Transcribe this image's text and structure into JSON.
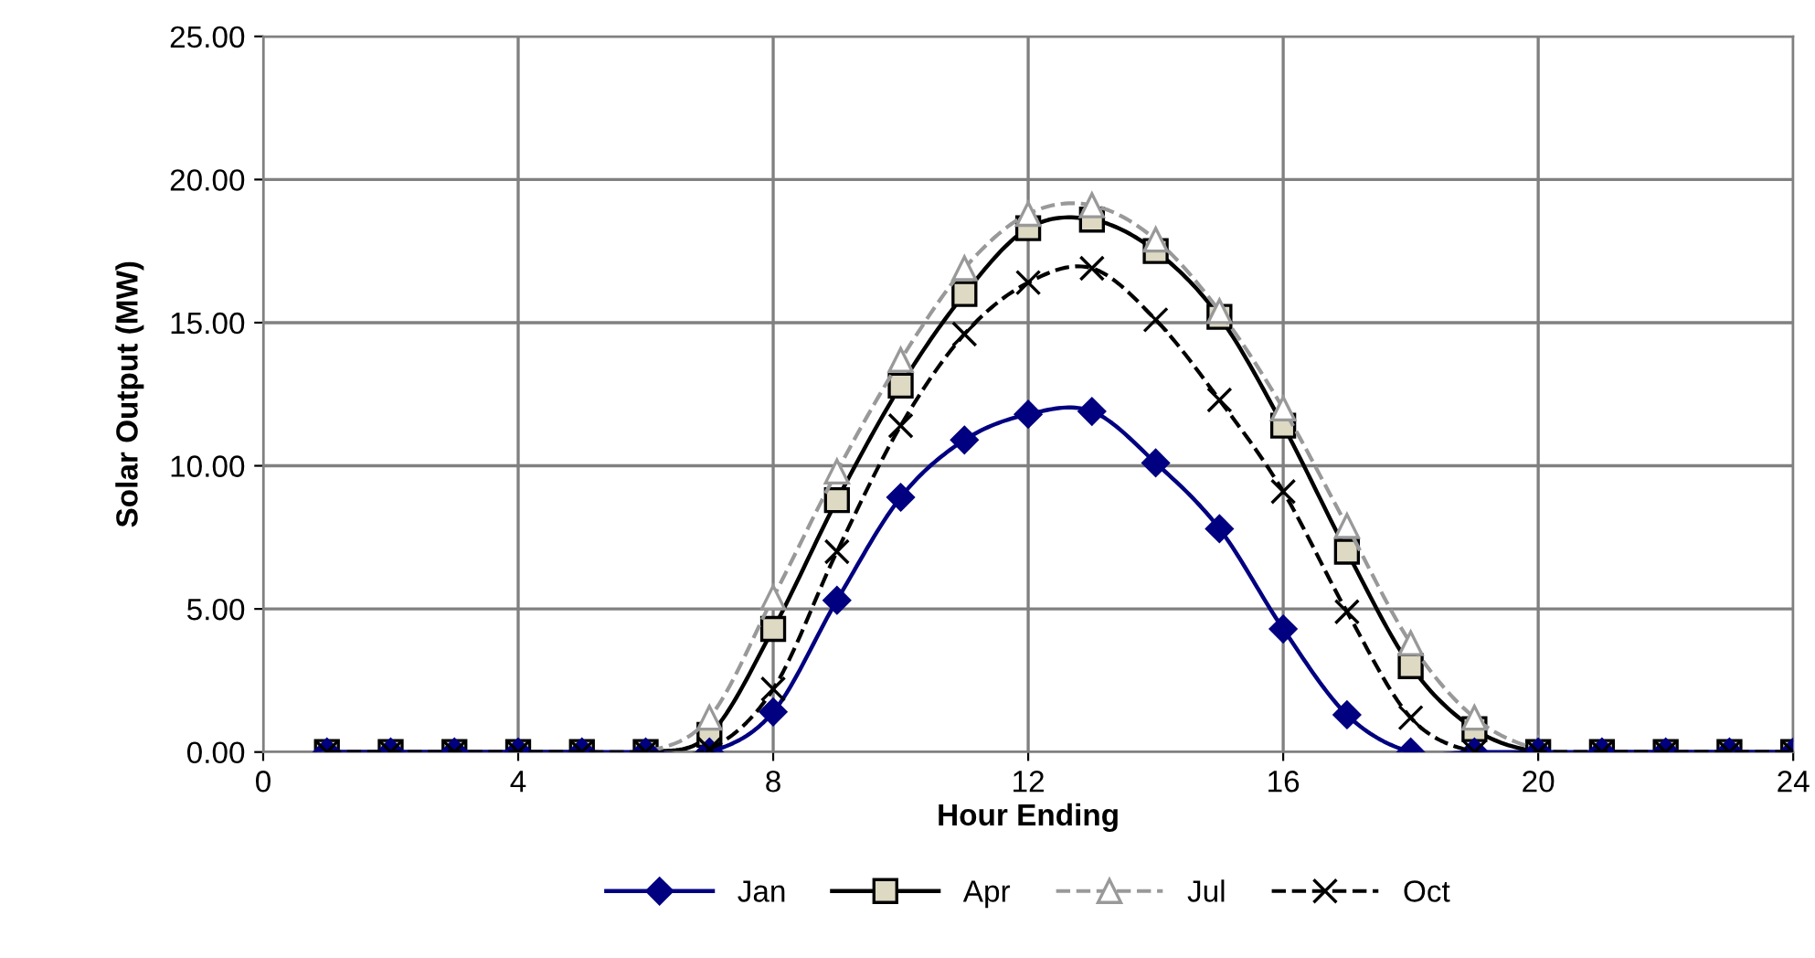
{
  "chart_data": {
    "type": "line",
    "xlabel": "Hour Ending",
    "ylabel": "Solar Output (MW)",
    "x": [
      1,
      2,
      3,
      4,
      5,
      6,
      7,
      8,
      9,
      10,
      11,
      12,
      13,
      14,
      15,
      16,
      17,
      18,
      19,
      20,
      21,
      22,
      23,
      24
    ],
    "xlim": [
      0,
      24
    ],
    "xticks": [
      0,
      4,
      8,
      12,
      16,
      20,
      24
    ],
    "ylim": [
      0,
      25
    ],
    "yticks": [
      {
        "value": 0,
        "label": "0.00"
      },
      {
        "value": 5,
        "label": "5.00"
      },
      {
        "value": 10,
        "label": "10.00"
      },
      {
        "value": 15,
        "label": "15.00"
      },
      {
        "value": 20,
        "label": "20.00"
      },
      {
        "value": 25,
        "label": "25.00"
      }
    ],
    "grid": true,
    "legend": "bottom",
    "series": [
      {
        "name": "Jan",
        "color": "#000080",
        "marker": "diamond",
        "line_style": "solid",
        "values": [
          0,
          0,
          0,
          0,
          0,
          0,
          0,
          1.4,
          5.3,
          8.9,
          10.9,
          11.8,
          11.9,
          10.1,
          7.8,
          4.3,
          1.3,
          0,
          0,
          0,
          0,
          0,
          0,
          0
        ]
      },
      {
        "name": "Apr",
        "color": "#000000",
        "marker": "square",
        "line_style": "solid",
        "values": [
          0,
          0,
          0,
          0,
          0,
          0,
          0.6,
          4.3,
          8.8,
          12.8,
          16.0,
          18.3,
          18.6,
          17.5,
          15.2,
          11.4,
          7.0,
          3.0,
          0.8,
          0,
          0,
          0,
          0,
          0
        ]
      },
      {
        "name": "Jul",
        "color": "#999999",
        "marker": "triangle",
        "line_style": "dashed",
        "values": [
          0,
          0,
          0,
          0,
          0,
          0,
          1.2,
          5.4,
          9.8,
          13.7,
          16.9,
          18.8,
          19.1,
          17.9,
          15.4,
          12.0,
          7.9,
          3.8,
          1.2,
          0.1,
          0,
          0,
          0,
          0
        ]
      },
      {
        "name": "Oct",
        "color": "#000000",
        "marker": "cross",
        "line_style": "dashed",
        "values": [
          0,
          0,
          0,
          0,
          0,
          0,
          0.1,
          2.2,
          7.0,
          11.4,
          14.6,
          16.4,
          16.9,
          15.1,
          12.3,
          9.1,
          4.9,
          1.2,
          0,
          0,
          0,
          0,
          0,
          0
        ]
      }
    ]
  }
}
